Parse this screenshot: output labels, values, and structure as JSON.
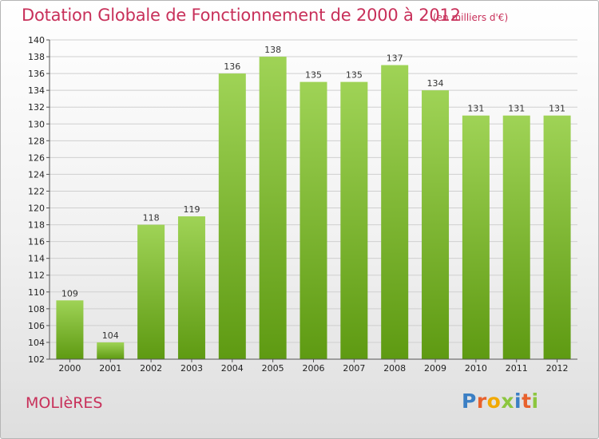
{
  "header": {
    "title": "Dotation Globale de Fonctionnement de 2000 à 2012",
    "subtitle": "(en milliers d'€)"
  },
  "footer": {
    "commune": "MOLIèRES",
    "logo_letters": [
      "P",
      "r",
      "o",
      "x",
      "i",
      "t",
      "i"
    ],
    "logo_colors": [
      "#3b7fc4",
      "#e8612c",
      "#f2a900",
      "#8cc63f",
      "#3b7fc4",
      "#e8612c",
      "#8cc63f"
    ]
  },
  "colors": {
    "bar_top": "#9fd356",
    "bar_bottom": "#5e9a12",
    "grid": "#cfcfcf",
    "text_accent": "#c8305a"
  },
  "chart_data": {
    "type": "bar",
    "categories": [
      "2000",
      "2001",
      "2002",
      "2003",
      "2004",
      "2005",
      "2006",
      "2007",
      "2008",
      "2009",
      "2010",
      "2011",
      "2012"
    ],
    "values": [
      109,
      104,
      118,
      119,
      136,
      138,
      135,
      135,
      137,
      134,
      131,
      131,
      131
    ],
    "ylim": [
      102,
      140
    ],
    "ytick_step": 2,
    "grid": true,
    "title": "Dotation Globale de Fonctionnement de 2000 à 2012",
    "subtitle": "(en milliers d'€)",
    "xlabel": "",
    "ylabel": ""
  }
}
